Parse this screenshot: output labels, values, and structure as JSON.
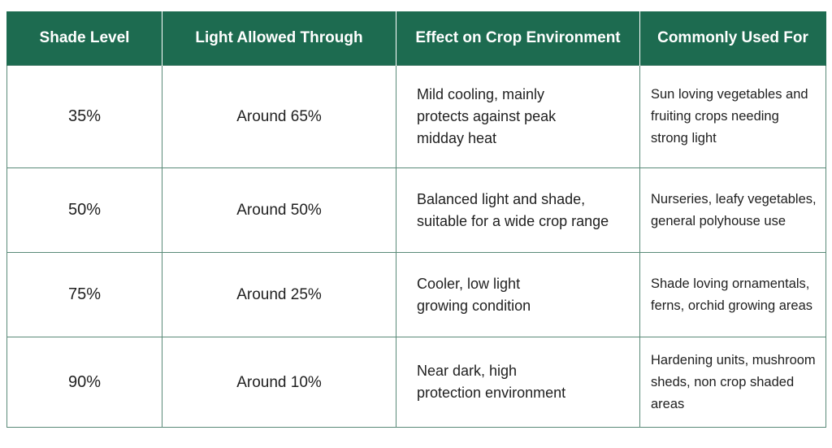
{
  "table": {
    "headers": [
      "Shade Level",
      "Light Allowed Through",
      "Effect on Crop Environment",
      "Commonly Used For"
    ],
    "rows": [
      {
        "shade_level": "35%",
        "light": "Around 65%",
        "effect": [
          "Mild cooling, mainly",
          "protects against peak",
          "midday heat"
        ],
        "use": [
          "Sun loving vegetables and",
          "fruiting crops needing",
          "strong light"
        ]
      },
      {
        "shade_level": "50%",
        "light": "Around 50%",
        "effect": [
          "Balanced light and shade,",
          "suitable for a wide crop range"
        ],
        "use": [
          "Nurseries, leafy vegetables,",
          "general polyhouse use"
        ]
      },
      {
        "shade_level": "75%",
        "light": "Around 25%",
        "effect": [
          "Cooler, low light",
          "growing condition"
        ],
        "use": [
          "Shade loving ornamentals,",
          "ferns, orchid growing areas"
        ]
      },
      {
        "shade_level": "90%",
        "light": "Around 10%",
        "effect": [
          "Near dark, high",
          "protection environment"
        ],
        "use": [
          "Hardening units, mushroom",
          "sheds, non crop shaded areas"
        ]
      }
    ]
  },
  "colors": {
    "header_bg": "#1d6b50",
    "header_text": "#ffffff",
    "border": "#5a8a78"
  }
}
